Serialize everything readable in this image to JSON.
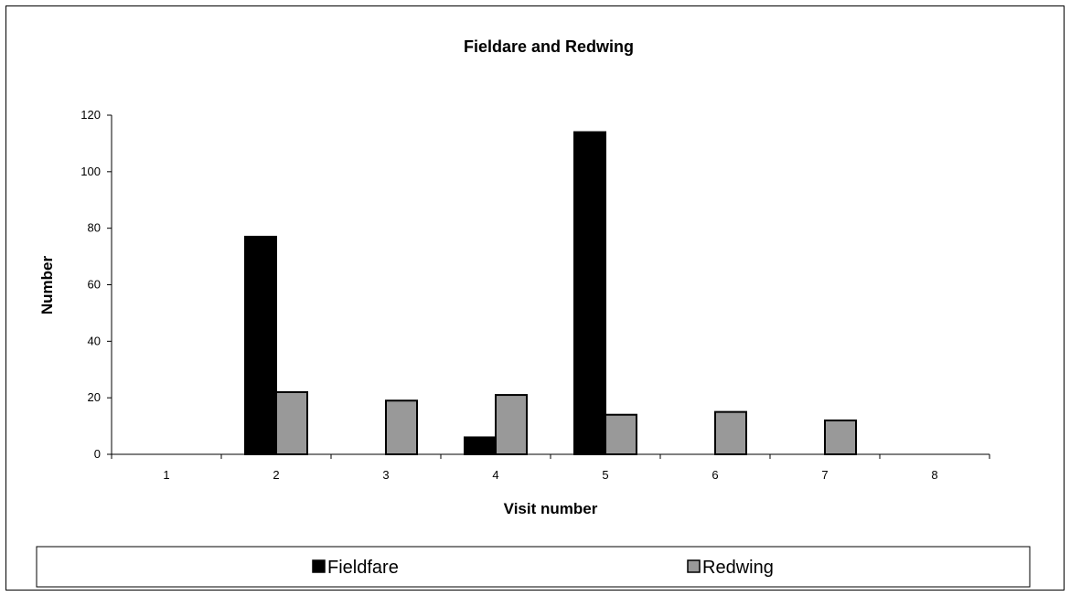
{
  "chart_data": {
    "type": "bar",
    "title": "Fieldare and Redwing",
    "xlabel": "Visit number",
    "ylabel": "Number",
    "categories": [
      "1",
      "2",
      "3",
      "4",
      "5",
      "6",
      "7",
      "8"
    ],
    "series": [
      {
        "name": "Fieldfare",
        "values": [
          0,
          77,
          0,
          6,
          114,
          0,
          0,
          0
        ],
        "color": "#000000"
      },
      {
        "name": "Redwing",
        "values": [
          0,
          22,
          19,
          21,
          14,
          15,
          12,
          0
        ],
        "color": "#999999"
      }
    ],
    "ylim": [
      0,
      120
    ],
    "yticks": [
      0,
      20,
      40,
      60,
      80,
      100,
      120
    ],
    "grid": false,
    "legend_position": "bottom"
  }
}
